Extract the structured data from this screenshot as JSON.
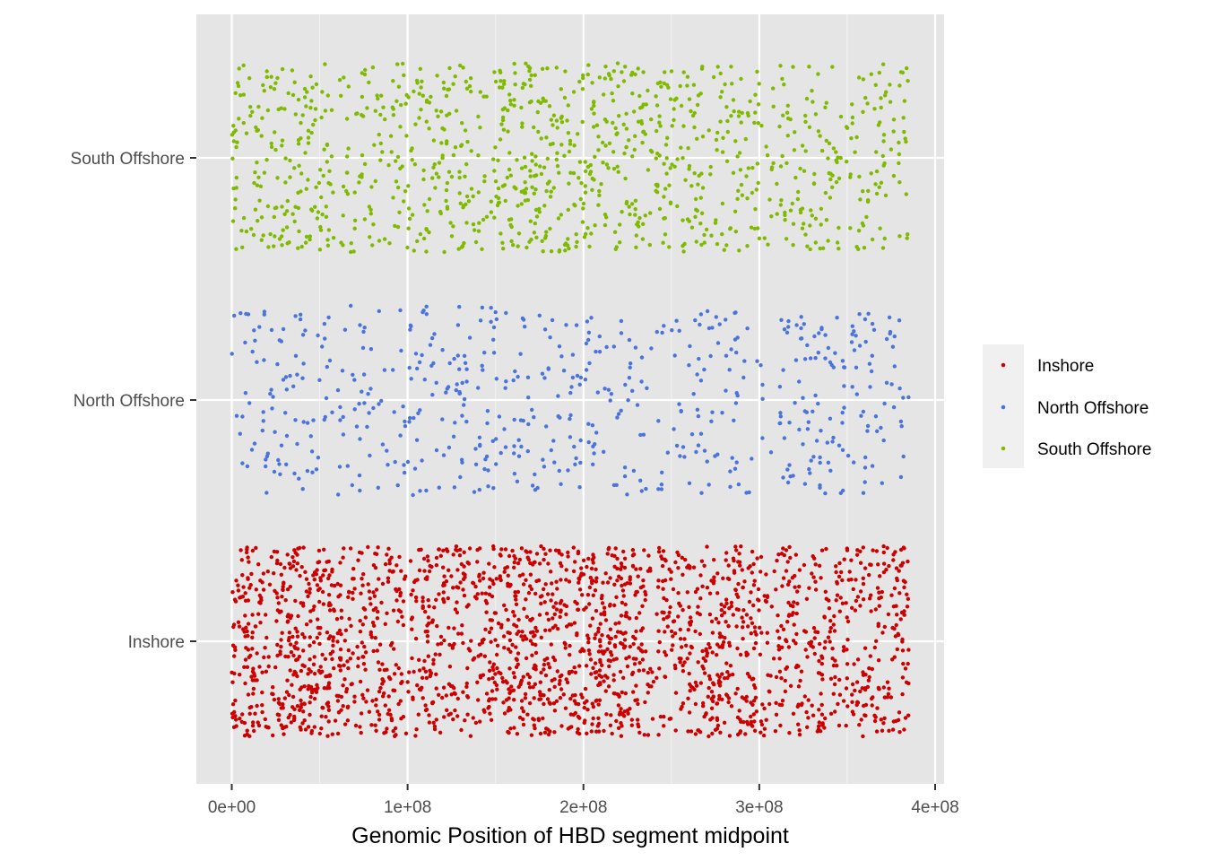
{
  "chart_data": {
    "type": "scatter",
    "subtype": "jitter strip plot",
    "xlabel": "Genomic Position of HBD segment midpoint",
    "ylabel": "",
    "xlim": [
      -20000000,
      405000000
    ],
    "x_ticks": [
      0,
      100000000,
      200000000,
      300000000,
      400000000
    ],
    "x_tick_labels": [
      "0e+00",
      "1e+08",
      "2e+08",
      "3e+08",
      "4e+08"
    ],
    "categories": [
      "Inshore",
      "North Offshore",
      "South Offshore"
    ],
    "grid": true,
    "background": "#e5e5e5",
    "legend": {
      "position": "right",
      "entries": [
        "Inshore",
        "North Offshore",
        "South Offshore"
      ]
    },
    "series": [
      {
        "name": "Inshore",
        "color": "#cc0000",
        "approx_points": 2200,
        "x_range": [
          0,
          385000000
        ],
        "dense_x_ranges": [
          [
            5000000,
            65000000
          ],
          [
            155000000,
            230000000
          ],
          [
            270000000,
            300000000
          ]
        ]
      },
      {
        "name": "North Offshore",
        "color": "#4a74d9",
        "approx_points": 600,
        "x_range": [
          0,
          385000000
        ],
        "sparse_x_ranges": [
          [
            295000000,
            310000000
          ]
        ]
      },
      {
        "name": "South Offshore",
        "color": "#7fba00",
        "approx_points": 1100,
        "x_range": [
          0,
          385000000
        ],
        "dense_x_ranges": [
          [
            150000000,
            240000000
          ]
        ]
      }
    ]
  }
}
